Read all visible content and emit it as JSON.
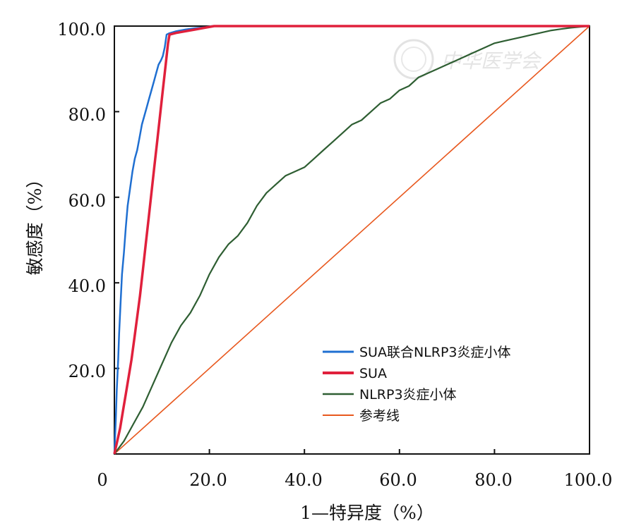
{
  "chart_data": {
    "type": "line",
    "xlabel": "1—特异度（%）",
    "ylabel": "敏感度（%）",
    "xlim": [
      0,
      100
    ],
    "ylim": [
      0,
      100
    ],
    "x_ticks": [
      "0",
      "20.0",
      "40.0",
      "60.0",
      "80.0",
      "100.0"
    ],
    "y_ticks": [
      "20.0",
      "40.0",
      "60.0",
      "80.0",
      "100.0"
    ],
    "grid": false,
    "legend_position": "bottom-right",
    "watermark": "中华医学会",
    "series": [
      {
        "name": "SUA联合NLRP3炎症小体",
        "color": "#1f6fd1",
        "points": [
          [
            0,
            0
          ],
          [
            0.3,
            8
          ],
          [
            0.5,
            15
          ],
          [
            0.8,
            22
          ],
          [
            1,
            28
          ],
          [
            1.3,
            35
          ],
          [
            1.6,
            42
          ],
          [
            2,
            47
          ],
          [
            2.4,
            53
          ],
          [
            2.8,
            58
          ],
          [
            3.3,
            62
          ],
          [
            3.8,
            66
          ],
          [
            4.3,
            69
          ],
          [
            4.8,
            71
          ],
          [
            5.3,
            74
          ],
          [
            5.8,
            77
          ],
          [
            6.3,
            79
          ],
          [
            6.8,
            81
          ],
          [
            7.3,
            83
          ],
          [
            7.8,
            85
          ],
          [
            8.3,
            87
          ],
          [
            8.8,
            89
          ],
          [
            9.3,
            91
          ],
          [
            9.8,
            92
          ],
          [
            10.2,
            93
          ],
          [
            10.6,
            95
          ],
          [
            11,
            98
          ],
          [
            11.5,
            98.3
          ],
          [
            13,
            98.8
          ],
          [
            15,
            99.2
          ],
          [
            17,
            99.5
          ],
          [
            19,
            99.7
          ],
          [
            20.5,
            100
          ],
          [
            100,
            100
          ]
        ]
      },
      {
        "name": "SUA",
        "color": "#e0203c",
        "points": [
          [
            0,
            0
          ],
          [
            0.4,
            2
          ],
          [
            0.8,
            4
          ],
          [
            1.2,
            6
          ],
          [
            1.8,
            10
          ],
          [
            2.4,
            14
          ],
          [
            3,
            18
          ],
          [
            3.6,
            22
          ],
          [
            4.2,
            27
          ],
          [
            4.8,
            32
          ],
          [
            5.4,
            37
          ],
          [
            6,
            43
          ],
          [
            6.6,
            49
          ],
          [
            7.2,
            55
          ],
          [
            7.8,
            61
          ],
          [
            8.4,
            67
          ],
          [
            9,
            73
          ],
          [
            9.6,
            79
          ],
          [
            10.2,
            85
          ],
          [
            10.8,
            91
          ],
          [
            11.3,
            96
          ],
          [
            11.6,
            98
          ],
          [
            13,
            98.4
          ],
          [
            15,
            98.8
          ],
          [
            17,
            99.2
          ],
          [
            19,
            99.6
          ],
          [
            21,
            100
          ],
          [
            100,
            100
          ]
        ]
      },
      {
        "name": "NLRP3炎症小体",
        "color": "#2e5e32",
        "points": [
          [
            0,
            0
          ],
          [
            2,
            3
          ],
          [
            4,
            7
          ],
          [
            6,
            11
          ],
          [
            8,
            16
          ],
          [
            10,
            21
          ],
          [
            12,
            26
          ],
          [
            14,
            30
          ],
          [
            16,
            33
          ],
          [
            18,
            37
          ],
          [
            20,
            42
          ],
          [
            22,
            46
          ],
          [
            24,
            49
          ],
          [
            26,
            51
          ],
          [
            28,
            54
          ],
          [
            30,
            58
          ],
          [
            32,
            61
          ],
          [
            34,
            63
          ],
          [
            36,
            65
          ],
          [
            38,
            66
          ],
          [
            40,
            67
          ],
          [
            42,
            69
          ],
          [
            44,
            71
          ],
          [
            46,
            73
          ],
          [
            48,
            75
          ],
          [
            50,
            77
          ],
          [
            52,
            78
          ],
          [
            54,
            80
          ],
          [
            56,
            82
          ],
          [
            58,
            83
          ],
          [
            60,
            85
          ],
          [
            62,
            86
          ],
          [
            64,
            88
          ],
          [
            66,
            89
          ],
          [
            68,
            90
          ],
          [
            70,
            91
          ],
          [
            72,
            92
          ],
          [
            74,
            93
          ],
          [
            76,
            94
          ],
          [
            78,
            95
          ],
          [
            80,
            96
          ],
          [
            82,
            96.5
          ],
          [
            84,
            97
          ],
          [
            86,
            97.5
          ],
          [
            88,
            98
          ],
          [
            90,
            98.5
          ],
          [
            92,
            99
          ],
          [
            94,
            99.3
          ],
          [
            96,
            99.6
          ],
          [
            98,
            99.8
          ],
          [
            100,
            100
          ]
        ]
      },
      {
        "name": "参考线",
        "color": "#e8581e",
        "points": [
          [
            0,
            0
          ],
          [
            100,
            100
          ]
        ]
      }
    ]
  }
}
